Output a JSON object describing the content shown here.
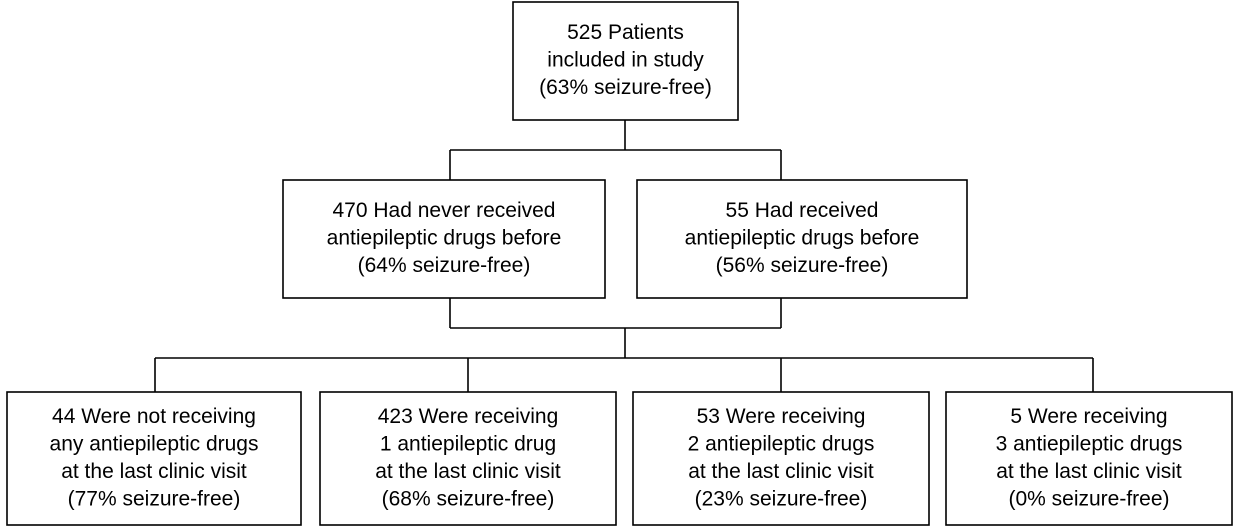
{
  "nodes": [
    {
      "lines": [
        "525 Patients",
        "included in study",
        "(63% seizure-free)"
      ]
    },
    {
      "lines": [
        "470 Had never received",
        "antiepileptic drugs before",
        "(64% seizure-free)"
      ]
    },
    {
      "lines": [
        "55 Had received",
        "antiepileptic drugs before",
        "(56% seizure-free)"
      ]
    },
    {
      "lines": [
        "44 Were not receiving",
        "any antiepileptic drugs",
        "at the last clinic visit",
        "(77% seizure-free)"
      ]
    },
    {
      "lines": [
        "423 Were receiving",
        "1 antiepileptic drug",
        "at the last clinic visit",
        "(68% seizure-free)"
      ]
    },
    {
      "lines": [
        "53 Were receiving",
        "2 antiepileptic drugs",
        "at the last clinic visit",
        "(23% seizure-free)"
      ]
    },
    {
      "lines": [
        "5 Were receiving",
        "3 antiepileptic drugs",
        "at the last clinic visit",
        "(0% seizure-free)"
      ]
    }
  ]
}
